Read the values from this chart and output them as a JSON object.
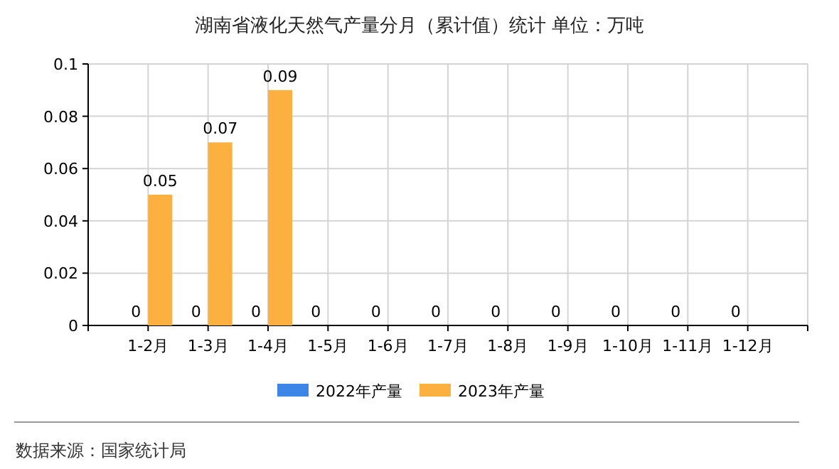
{
  "chart_data": {
    "type": "bar",
    "title": "湖南省液化天然气产量分月（累计值）统计  单位：万吨",
    "categories": [
      "1-2月",
      "1-3月",
      "1-4月",
      "1-5月",
      "1-6月",
      "1-7月",
      "1-8月",
      "1-9月",
      "1-10月",
      "1-11月",
      "1-12月"
    ],
    "series": [
      {
        "name": "2022年产量",
        "color": "#3d86e8",
        "values": [
          0,
          0,
          0,
          0,
          0,
          0,
          0,
          0,
          0,
          0,
          0
        ]
      },
      {
        "name": "2023年产量",
        "color": "#fbb040",
        "values": [
          0.05,
          0.07,
          0.09,
          null,
          null,
          null,
          null,
          null,
          null,
          null,
          null
        ]
      }
    ],
    "ylim": [
      0,
      0.1
    ],
    "yticks": [
      0,
      0.02,
      0.04,
      0.06,
      0.08,
      0.1
    ],
    "grid": true,
    "legend": "bottom",
    "data_labels": true,
    "annotations": [
      "数据来源：国家统计局"
    ]
  }
}
